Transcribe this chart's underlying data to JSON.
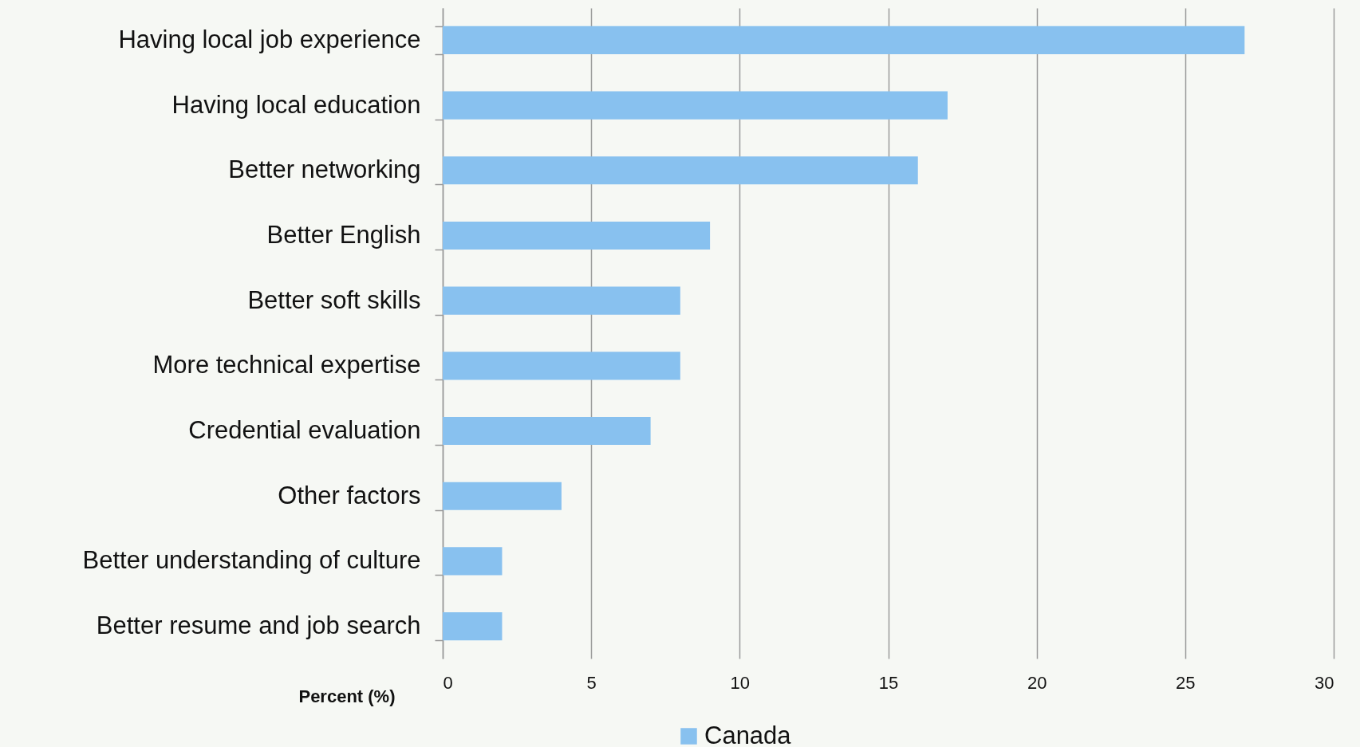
{
  "chart_data": {
    "type": "bar",
    "orientation": "horizontal",
    "xlabel": "Percent  (%)",
    "categories": [
      "Having local job experience",
      "Having local education",
      "Better networking",
      "Better English",
      "Better soft skills",
      "More technical expertise",
      "Credential evaluation",
      "Other factors",
      "Better understanding of culture",
      "Better resume and job search"
    ],
    "series": [
      {
        "name": "Canada",
        "color": "#88c1ef",
        "values": [
          27,
          17,
          16,
          9,
          8,
          8,
          7,
          4,
          2,
          2
        ]
      }
    ],
    "xlim": [
      0,
      30
    ],
    "xticks": [
      0,
      5,
      10,
      15,
      20,
      25,
      30
    ],
    "grid": "x",
    "legend": "bottom"
  }
}
